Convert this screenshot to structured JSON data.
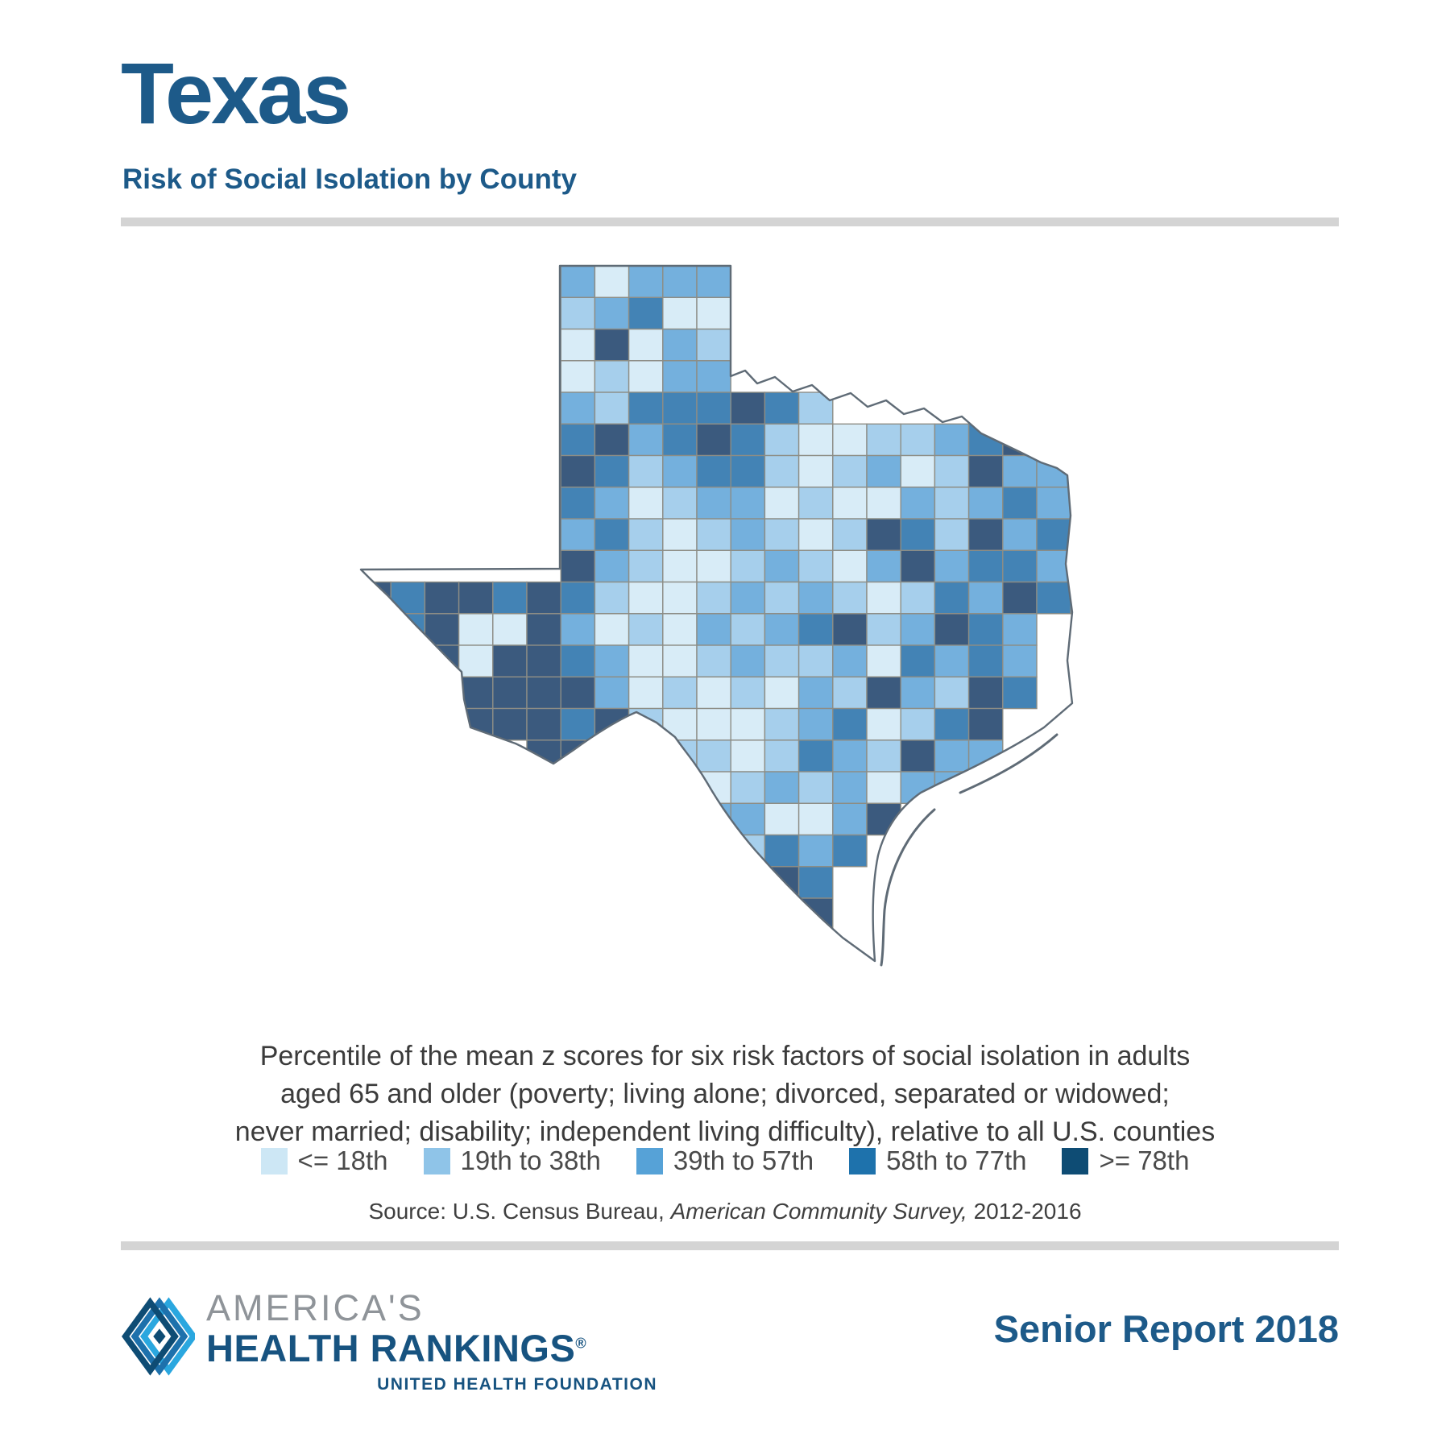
{
  "header": {
    "title": "Texas",
    "subtitle": "Risk of Social Isolation by County"
  },
  "description": {
    "lines": [
      "Percentile of the mean z scores for six risk factors of social isolation in adults",
      "aged 65 and older (poverty; living alone; divorced, separated or widowed;",
      "never married; disability; independent living difficulty), relative to all U.S. counties"
    ]
  },
  "legend": {
    "items": [
      {
        "label": "<= 18th",
        "color": "#cde7f5"
      },
      {
        "label": "19th to 38th",
        "color": "#8fc4e8"
      },
      {
        "label": "39th to 57th",
        "color": "#56a2d7"
      },
      {
        "label": "58th to 77th",
        "color": "#1e72ac"
      },
      {
        "label": ">= 78th",
        "color": "#0e4c74"
      }
    ]
  },
  "source": {
    "prefix": "Source: U.S. Census Bureau, ",
    "italic": "American Community Survey,",
    "suffix": " 2012-2016"
  },
  "footer": {
    "brand_top": "AMERICA'S",
    "brand_main": "HEALTH RANKINGS",
    "brand_reg": "®",
    "brand_sub": "UNITED HEALTH FOUNDATION",
    "report_title": "Senior Report 2018"
  },
  "map": {
    "region": "Texas counties choropleth",
    "metric": "Risk of social isolation percentile class (1 = lightest / lowest, 5 = darkest / highest)",
    "palette_map": [
      "#d8ecf7",
      "#a6cfec",
      "#74b0dd",
      "#4383b5",
      "#3b5a7e"
    ],
    "class_labels": [
      "<= 18th",
      "19th to 38th",
      "39th to 57th",
      "58th to 77th",
      ">= 78th"
    ],
    "grid": [
      [
        0,
        0,
        0,
        0,
        0,
        0,
        3,
        1,
        3,
        3,
        3,
        0,
        0,
        0,
        0,
        0,
        0,
        0,
        0,
        0,
        0
      ],
      [
        0,
        0,
        0,
        0,
        0,
        0,
        2,
        3,
        4,
        1,
        1,
        0,
        0,
        0,
        0,
        0,
        0,
        0,
        0,
        0,
        0
      ],
      [
        0,
        0,
        0,
        0,
        0,
        0,
        1,
        5,
        1,
        3,
        2,
        0,
        0,
        0,
        0,
        0,
        0,
        0,
        0,
        0,
        0
      ],
      [
        0,
        0,
        0,
        0,
        0,
        0,
        1,
        2,
        1,
        3,
        3,
        0,
        0,
        0,
        0,
        0,
        0,
        0,
        0,
        0,
        0
      ],
      [
        0,
        0,
        0,
        0,
        0,
        0,
        3,
        2,
        4,
        4,
        4,
        5,
        4,
        2,
        0,
        0,
        0,
        0,
        0,
        0,
        0
      ],
      [
        0,
        0,
        0,
        0,
        0,
        0,
        4,
        5,
        3,
        4,
        5,
        4,
        2,
        1,
        1,
        2,
        2,
        3,
        4,
        5,
        4
      ],
      [
        0,
        0,
        0,
        0,
        0,
        0,
        5,
        4,
        2,
        3,
        4,
        4,
        2,
        1,
        2,
        3,
        1,
        2,
        5,
        3,
        3
      ],
      [
        0,
        0,
        0,
        0,
        0,
        0,
        4,
        3,
        1,
        2,
        3,
        3,
        1,
        2,
        1,
        1,
        3,
        2,
        3,
        4,
        3
      ],
      [
        0,
        0,
        0,
        0,
        0,
        0,
        3,
        4,
        2,
        1,
        2,
        3,
        2,
        1,
        2,
        5,
        4,
        2,
        5,
        3,
        4
      ],
      [
        0,
        0,
        0,
        0,
        0,
        0,
        5,
        3,
        2,
        1,
        1,
        2,
        3,
        2,
        1,
        3,
        5,
        3,
        4,
        4,
        3
      ],
      [
        5,
        4,
        5,
        5,
        4,
        5,
        4,
        2,
        1,
        1,
        2,
        3,
        2,
        3,
        2,
        1,
        2,
        4,
        3,
        5,
        4
      ],
      [
        0,
        4,
        5,
        1,
        1,
        5,
        3,
        1,
        2,
        1,
        3,
        2,
        3,
        4,
        5,
        2,
        3,
        5,
        4,
        3,
        0
      ],
      [
        0,
        5,
        5,
        1,
        5,
        5,
        4,
        3,
        1,
        1,
        2,
        3,
        2,
        2,
        3,
        1,
        4,
        3,
        4,
        3,
        0
      ],
      [
        0,
        0,
        5,
        5,
        5,
        5,
        5,
        3,
        1,
        2,
        1,
        2,
        1,
        3,
        2,
        5,
        3,
        2,
        5,
        4,
        0
      ],
      [
        0,
        0,
        0,
        5,
        5,
        5,
        4,
        5,
        2,
        1,
        1,
        1,
        2,
        3,
        4,
        1,
        2,
        4,
        5,
        0,
        0
      ],
      [
        0,
        0,
        0,
        0,
        0,
        5,
        5,
        5,
        4,
        2,
        2,
        1,
        2,
        4,
        3,
        2,
        5,
        3,
        3,
        0,
        0
      ],
      [
        0,
        0,
        0,
        0,
        0,
        0,
        0,
        5,
        5,
        3,
        1,
        2,
        3,
        2,
        3,
        1,
        3,
        3,
        0,
        0,
        0
      ],
      [
        0,
        0,
        0,
        0,
        0,
        0,
        0,
        0,
        5,
        5,
        3,
        3,
        1,
        1,
        3,
        5,
        0,
        0,
        0,
        0,
        0
      ],
      [
        0,
        0,
        0,
        0,
        0,
        0,
        0,
        0,
        5,
        5,
        3,
        2,
        4,
        3,
        4,
        0,
        0,
        0,
        0,
        0,
        0
      ],
      [
        0,
        0,
        0,
        0,
        0,
        0,
        0,
        0,
        5,
        5,
        4,
        3,
        5,
        4,
        0,
        0,
        0,
        0,
        0,
        0,
        0
      ],
      [
        0,
        0,
        0,
        0,
        0,
        0,
        0,
        0,
        0,
        5,
        5,
        4,
        5,
        5,
        0,
        0,
        0,
        0,
        0,
        0,
        0
      ],
      [
        0,
        0,
        0,
        0,
        0,
        0,
        0,
        0,
        0,
        5,
        5,
        5,
        5,
        5,
        0,
        0,
        0,
        0,
        0,
        0,
        0
      ]
    ]
  },
  "colors": {
    "navy": "#1d5a89",
    "brand_navy": "#175380",
    "brand_gray": "#8f9499",
    "text": "#3b3b3b",
    "muted": "#4a4a4a",
    "divider": "#d4d4d4",
    "county_border": "#8d8d85",
    "state_outline": "#5f6b76",
    "logo_light": "#2aa7df",
    "logo_mid": "#1d71ac",
    "logo_dark": "#0e4c74"
  }
}
